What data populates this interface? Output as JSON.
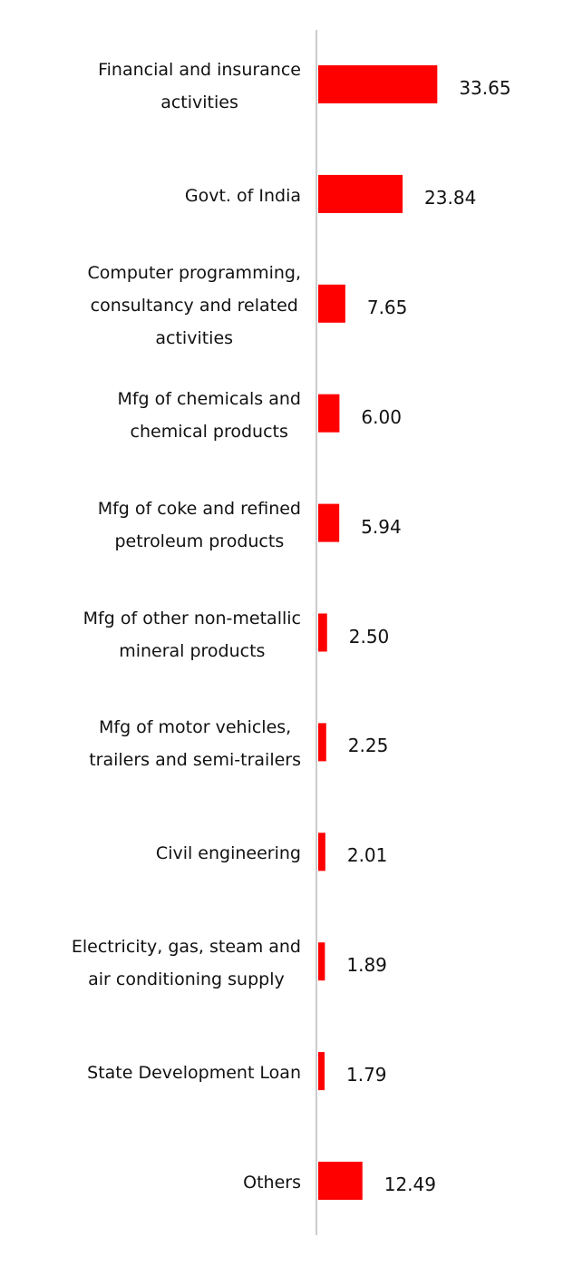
{
  "chart_data": {
    "type": "bar",
    "orientation": "horizontal",
    "categories": [
      "Financial and insurance\nactivities",
      "Govt. of India",
      "Computer programming,\nconsultancy and related\nactivities",
      "Mfg of chemicals and\nchemical products",
      "Mfg of coke and refined\npetroleum products",
      "Mfg of other non-metallic\nmineral products",
      "Mfg of motor vehicles,\ntrailers and semi-trailers",
      "Civil engineering",
      "Electricity, gas, steam and\nair conditioning supply",
      "State Development Loan",
      "Others"
    ],
    "values": [
      33.65,
      23.84,
      7.65,
      6,
      5.94,
      2.5,
      2.25,
      2.01,
      1.89,
      1.79,
      12.49
    ],
    "value_labels": [
      "33.65",
      "23.84",
      "7.65",
      "6.00",
      "5.94",
      "2.50",
      "2.25",
      "2.01",
      "1.89",
      "1.79",
      "12.49"
    ],
    "color": "#ff0000",
    "xlim": [
      0,
      72
    ]
  }
}
